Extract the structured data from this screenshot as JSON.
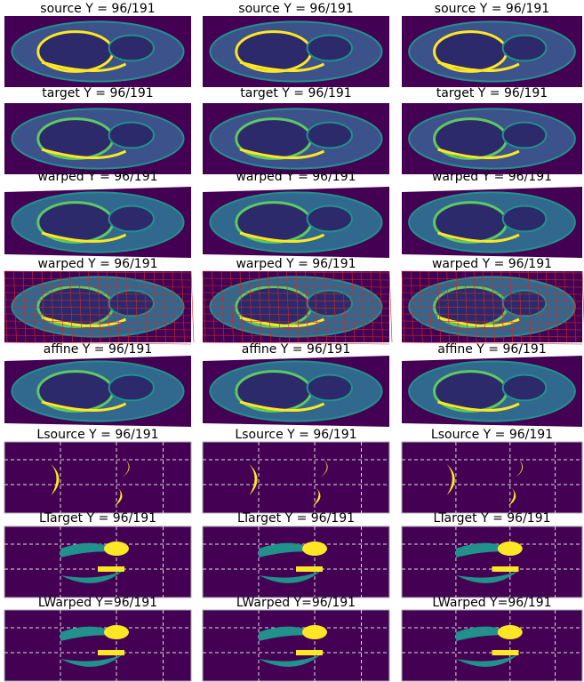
{
  "rows": [
    [
      "source Y = 96/191",
      "source Y = 96/191",
      "source Y = 96/191"
    ],
    [
      "target Y = 96/191",
      "target Y = 96/191",
      "target Y = 96/191"
    ],
    [
      "warped Y = 96/191",
      "warped Y = 96/191",
      "warped Y = 96/191"
    ],
    [
      "warped Y = 96/191",
      "warped Y = 96/191",
      "warped Y = 96/191"
    ],
    [
      "affine Y = 96/191",
      "affine Y = 96/191",
      "affine Y = 96/191"
    ],
    [
      "Lsource Y = 96/191",
      "Lsource Y = 96/191",
      "Lsource Y = 96/191"
    ],
    [
      "LTarget Y = 96/191",
      "LTarget Y = 96/191",
      "LTarget Y = 96/191"
    ],
    [
      "LWarped Y=96/191",
      "LWarped Y=96/191",
      "LWarped Y=96/191"
    ]
  ]
}
